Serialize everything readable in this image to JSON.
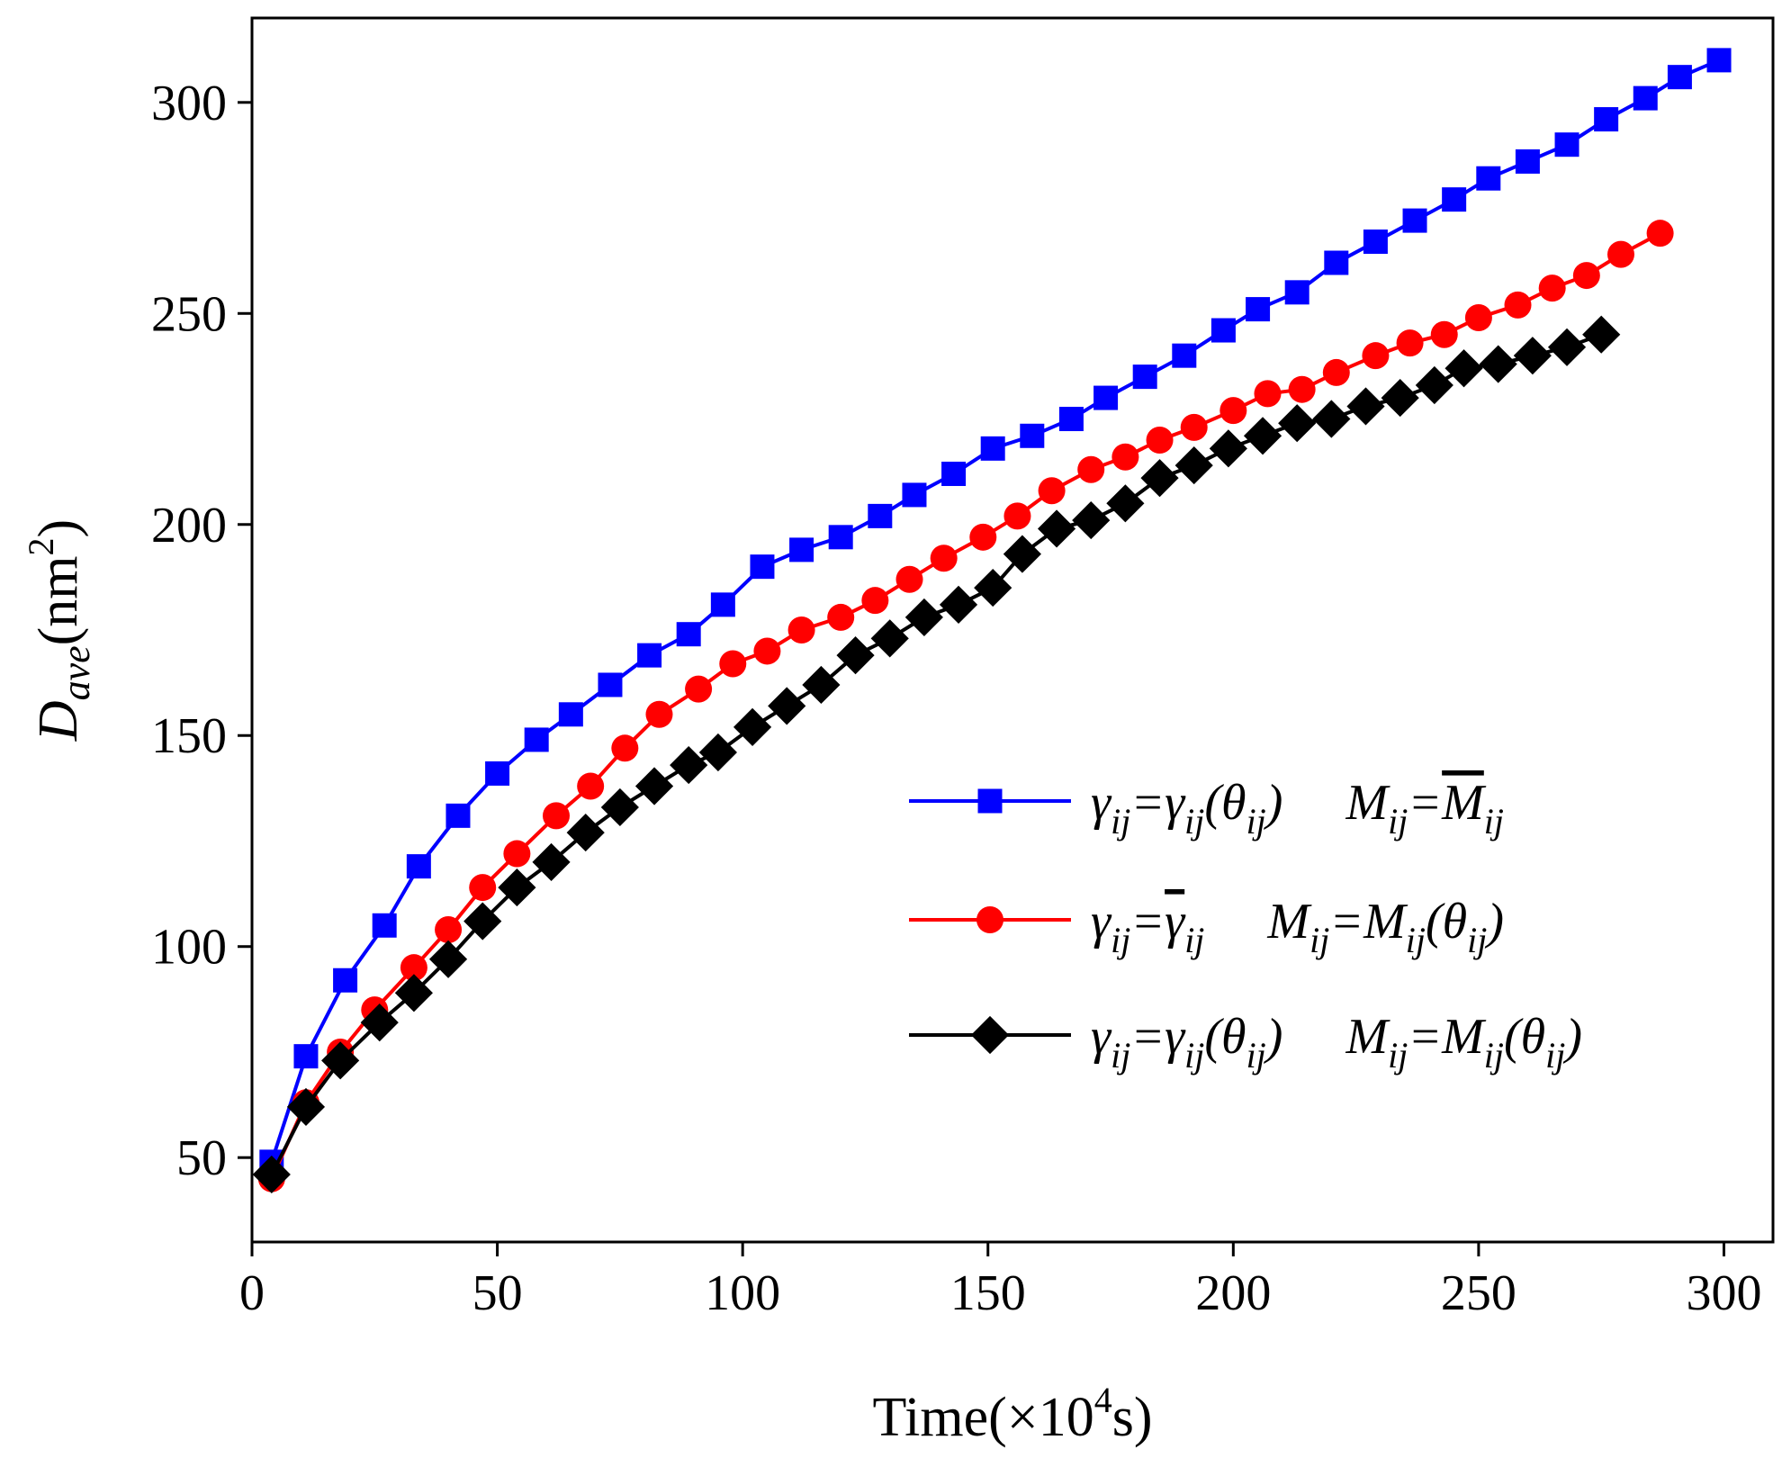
{
  "chart_data": {
    "type": "line",
    "title": "",
    "xlabel": {
      "base": "Time(×10",
      "sup": "4",
      "tail": "s)"
    },
    "ylabel": {
      "base": "D",
      "sub": "ave",
      "unit": "(nm",
      "sup": "2",
      "tail": ")"
    },
    "xlim": [
      0,
      310
    ],
    "ylim": [
      30,
      320
    ],
    "xticks": [
      0,
      50,
      100,
      150,
      200,
      250,
      300
    ],
    "xtick_labels": [
      "0",
      "50",
      "100",
      "150",
      "200",
      "250",
      "300"
    ],
    "yticks": [
      50,
      100,
      150,
      200,
      250,
      300
    ],
    "ytick_labels": [
      "50",
      "100",
      "150",
      "200",
      "250",
      "300"
    ],
    "grid": false,
    "legend_position": "center-right",
    "series": [
      {
        "name": "γij=γij(θij)   Mij=M̄ij",
        "legend_parts": [
          {
            "t": "γ"
          },
          {
            "t": "ij",
            "sub": true
          },
          {
            "t": "=γ"
          },
          {
            "t": "ij",
            "sub": true
          },
          {
            "t": "(θ"
          },
          {
            "t": "ij",
            "sub": true
          },
          {
            "t": ")"
          },
          {
            "t": "M",
            "gap": true
          },
          {
            "t": "ij",
            "sub": true
          },
          {
            "t": "="
          },
          {
            "t": "M",
            "overline": true
          },
          {
            "t": "ij",
            "sub": true
          }
        ],
        "color": "#0000ff",
        "marker": "square",
        "x": [
          4,
          11,
          19,
          27,
          34,
          42,
          50,
          58,
          65,
          73,
          81,
          89,
          96,
          104,
          112,
          120,
          128,
          135,
          143,
          151,
          159,
          167,
          174,
          182,
          190,
          198,
          205,
          213,
          221,
          229,
          237,
          245,
          252,
          260,
          268,
          276,
          284,
          291,
          299
        ],
        "y": [
          49,
          74,
          92,
          105,
          119,
          131,
          141,
          149,
          155,
          162,
          169,
          174,
          181,
          190,
          194,
          197,
          202,
          207,
          212,
          218,
          221,
          225,
          230,
          235,
          240,
          246,
          251,
          255,
          262,
          267,
          272,
          277,
          282,
          286,
          290,
          296,
          301,
          306,
          310
        ]
      },
      {
        "name": "γij=γ̄ij   Mij=Mij(θij)",
        "legend_parts": [
          {
            "t": "γ"
          },
          {
            "t": "ij",
            "sub": true
          },
          {
            "t": "="
          },
          {
            "t": "γ",
            "overline": true
          },
          {
            "t": "ij",
            "sub": true
          },
          {
            "t": "M",
            "gap": true
          },
          {
            "t": "ij",
            "sub": true
          },
          {
            "t": "=M"
          },
          {
            "t": "ij",
            "sub": true
          },
          {
            "t": "(θ"
          },
          {
            "t": "ij",
            "sub": true
          },
          {
            "t": ")"
          }
        ],
        "color": "#ff0000",
        "marker": "circle",
        "x": [
          4,
          11,
          18,
          25,
          33,
          40,
          47,
          54,
          62,
          69,
          76,
          83,
          91,
          98,
          105,
          112,
          120,
          127,
          134,
          141,
          149,
          156,
          163,
          171,
          178,
          185,
          192,
          200,
          207,
          214,
          221,
          229,
          236,
          243,
          250,
          258,
          265,
          272,
          279,
          287
        ],
        "y": [
          45,
          63,
          75,
          85,
          95,
          104,
          114,
          122,
          131,
          138,
          147,
          155,
          161,
          167,
          170,
          175,
          178,
          182,
          187,
          192,
          197,
          202,
          208,
          213,
          216,
          220,
          223,
          227,
          231,
          232,
          236,
          240,
          243,
          245,
          249,
          252,
          256,
          259,
          264,
          269
        ]
      },
      {
        "name": "γij=γij(θij)   Mij=Mij(θij)",
        "legend_parts": [
          {
            "t": "γ"
          },
          {
            "t": "ij",
            "sub": true
          },
          {
            "t": "=γ"
          },
          {
            "t": "ij",
            "sub": true
          },
          {
            "t": "(θ"
          },
          {
            "t": "ij",
            "sub": true
          },
          {
            "t": ")"
          },
          {
            "t": "M",
            "gap": true
          },
          {
            "t": "ij",
            "sub": true
          },
          {
            "t": "=M"
          },
          {
            "t": "ij",
            "sub": true
          },
          {
            "t": "(θ"
          },
          {
            "t": "ij",
            "sub": true
          },
          {
            "t": ")"
          }
        ],
        "color": "#000000",
        "marker": "diamond",
        "x": [
          4,
          11,
          18,
          26,
          33,
          40,
          47,
          54,
          61,
          68,
          75,
          82,
          89,
          95,
          102,
          109,
          116,
          123,
          130,
          137,
          144,
          151,
          157,
          164,
          171,
          178,
          185,
          192,
          199,
          206,
          213,
          220,
          227,
          234,
          241,
          247,
          254,
          261,
          268,
          275
        ],
        "y": [
          46,
          62,
          73,
          82,
          89,
          97,
          106,
          114,
          120,
          127,
          133,
          138,
          143,
          146,
          152,
          157,
          162,
          169,
          173,
          178,
          181,
          185,
          193,
          199,
          201,
          205,
          211,
          214,
          218,
          221,
          224,
          225,
          228,
          230,
          233,
          237,
          238,
          240,
          242,
          245
        ]
      }
    ]
  }
}
